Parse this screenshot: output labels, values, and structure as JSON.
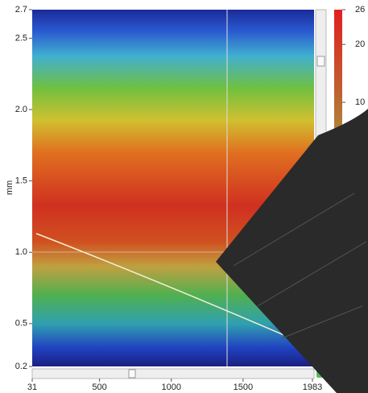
{
  "chart_data": {
    "type": "heatmap",
    "y_label": "mm",
    "xlim": [
      31,
      1983
    ],
    "xticks": [
      31,
      500,
      1000,
      1500,
      1983
    ],
    "ylim": [
      0.2,
      2.7
    ],
    "yticks": [
      2.7,
      2.5,
      {
        "value": 2,
        "label": "2.0"
      },
      1.5,
      {
        "value": 1,
        "label": "1.0"
      },
      0.5,
      0.2
    ],
    "colorbar": {
      "lim": [
        0,
        26
      ],
      "ticks": [
        26,
        20,
        10
      ]
    }
  }
}
